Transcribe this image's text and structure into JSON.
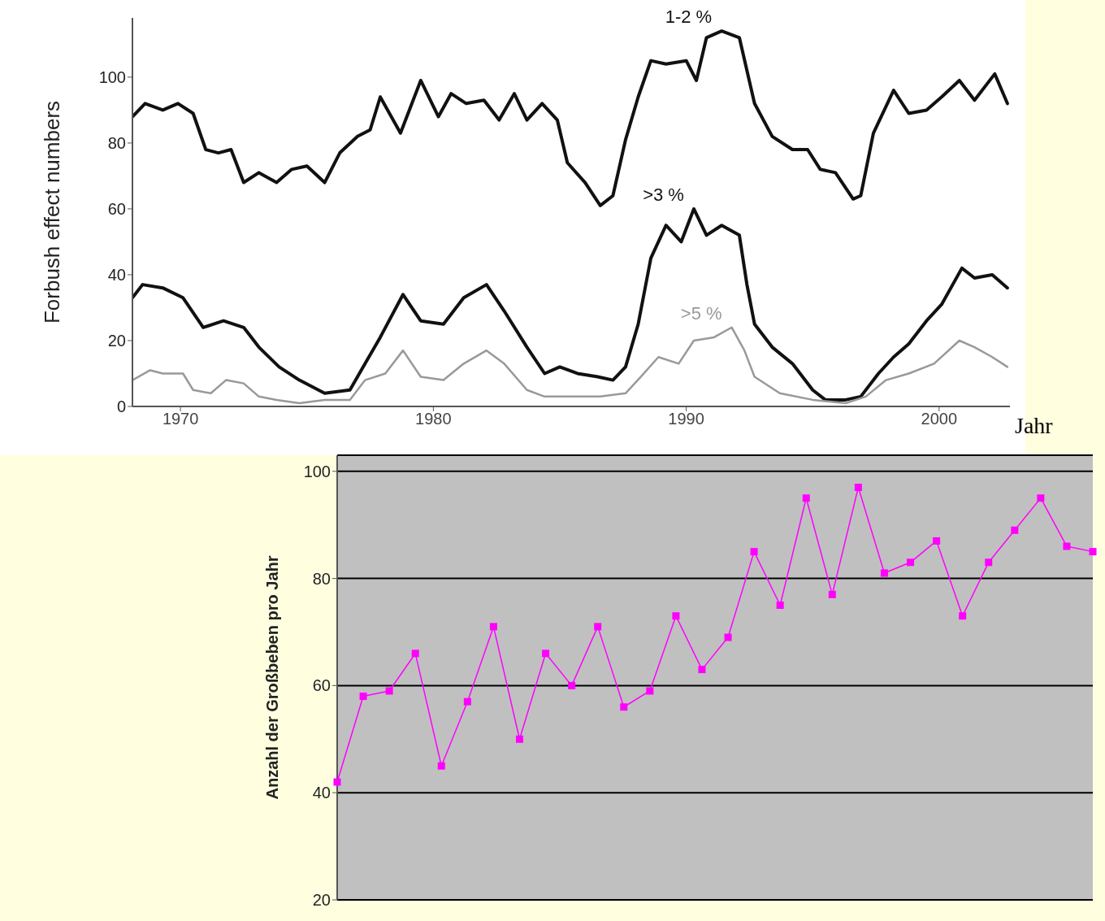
{
  "chart_data": [
    {
      "type": "line",
      "xlabel": "Jahr",
      "ylabel": "Forbush effect numbers",
      "xlim": [
        1968.1,
        2002.8
      ],
      "xticks": [
        1970,
        1980,
        1990,
        2000
      ],
      "ylim": [
        0,
        118
      ],
      "yticks": [
        0,
        20,
        40,
        60,
        80,
        100
      ],
      "grid": false,
      "marker": "none",
      "line_style": "solid",
      "series": [
        {
          "name": "1-2 %",
          "color": "#111111",
          "x": [
            1968.1,
            1968.6,
            1969.3,
            1969.9,
            1970.5,
            1971.0,
            1971.5,
            1972.0,
            1972.5,
            1973.1,
            1973.8,
            1974.4,
            1975.0,
            1975.7,
            1976.3,
            1977.0,
            1977.5,
            1977.9,
            1978.7,
            1979.5,
            1980.2,
            1980.7,
            1981.3,
            1982.0,
            1982.6,
            1983.2,
            1983.7,
            1984.3,
            1984.9,
            1985.3,
            1986.0,
            1986.6,
            1987.1,
            1987.6,
            1988.1,
            1988.6,
            1989.2,
            1990.0,
            1990.4,
            1990.8,
            1991.4,
            1992.1,
            1992.7,
            1993.4,
            1994.2,
            1994.8,
            1995.3,
            1995.9,
            1996.6,
            1996.9,
            1997.4,
            1998.2,
            1998.8,
            1999.5,
            2000.1,
            2000.8,
            2001.4,
            2002.2,
            2002.7
          ],
          "values": [
            88,
            92,
            90,
            92,
            89,
            78,
            77,
            78,
            68,
            71,
            68,
            72,
            73,
            68,
            77,
            82,
            84,
            94,
            83,
            99,
            88,
            95,
            92,
            93,
            87,
            95,
            87,
            92,
            87,
            74,
            68,
            61,
            64,
            81,
            94,
            105,
            104,
            105,
            99,
            112,
            114,
            112,
            92,
            82,
            78,
            78,
            72,
            71,
            63,
            64,
            83,
            96,
            89,
            90,
            94,
            99,
            93,
            101,
            92
          ]
        },
        {
          "name": ">3 %",
          "color": "#111111",
          "x": [
            1968.1,
            1968.5,
            1969.3,
            1970.1,
            1970.9,
            1971.7,
            1972.5,
            1973.1,
            1973.9,
            1974.7,
            1975.7,
            1976.7,
            1977.3,
            1977.9,
            1978.8,
            1979.5,
            1980.4,
            1981.2,
            1982.1,
            1982.8,
            1983.7,
            1984.4,
            1985.0,
            1985.7,
            1986.5,
            1987.1,
            1987.6,
            1988.1,
            1988.6,
            1989.2,
            1989.8,
            1990.3,
            1990.8,
            1991.4,
            1992.1,
            1992.4,
            1992.7,
            1993.4,
            1994.2,
            1995.0,
            1995.5,
            1996.3,
            1996.9,
            1997.6,
            1998.2,
            1998.8,
            1999.5,
            2000.1,
            2000.9,
            2001.4,
            2002.1,
            2002.7
          ],
          "values": [
            33,
            37,
            36,
            33,
            24,
            26,
            24,
            18,
            12,
            8,
            4,
            5,
            13,
            21,
            34,
            26,
            25,
            33,
            37,
            29,
            18,
            10,
            12,
            10,
            9,
            8,
            12,
            25,
            45,
            55,
            50,
            60,
            52,
            55,
            52,
            37,
            25,
            18,
            13,
            5,
            2,
            2,
            3,
            10,
            15,
            19,
            26,
            31,
            42,
            39,
            40,
            36
          ]
        },
        {
          "name": ">5 %",
          "color": "#999999",
          "x": [
            1968.1,
            1968.8,
            1969.3,
            1970.1,
            1970.5,
            1971.2,
            1971.8,
            1972.5,
            1973.1,
            1973.8,
            1974.7,
            1975.7,
            1976.7,
            1977.3,
            1978.1,
            1978.8,
            1979.5,
            1980.4,
            1981.2,
            1982.1,
            1982.8,
            1983.7,
            1984.4,
            1985.3,
            1986.6,
            1987.6,
            1988.2,
            1988.9,
            1989.7,
            1990.3,
            1991.1,
            1991.8,
            1992.3,
            1992.7,
            1993.7,
            1995.0,
            1996.3,
            1997.1,
            1997.9,
            1998.8,
            1999.8,
            2000.8,
            2001.4,
            2002.1,
            2002.7
          ],
          "values": [
            8,
            11,
            10,
            10,
            5,
            4,
            8,
            7,
            3,
            2,
            1,
            2,
            2,
            8,
            10,
            17,
            9,
            8,
            13,
            17,
            13,
            5,
            3,
            3,
            3,
            4,
            9,
            15,
            13,
            20,
            21,
            24,
            17,
            9,
            4,
            2,
            1,
            3,
            8,
            10,
            13,
            20,
            18,
            15,
            12
          ]
        }
      ]
    },
    {
      "type": "line",
      "ylabel": "Anzahl der Großbeben pro Jahr",
      "categories": [
        null,
        null,
        null,
        null,
        null,
        null,
        null,
        null,
        null,
        null,
        null,
        null,
        null,
        null,
        null,
        null,
        null,
        null,
        null,
        null,
        null,
        null,
        null,
        null,
        null,
        null,
        null,
        null,
        null,
        null
      ],
      "ylim": [
        20,
        103
      ],
      "yticks": [
        20,
        40,
        60,
        80,
        100
      ],
      "grid": "y",
      "marker": "square",
      "line_style": "solid",
      "tick_labels": "y",
      "series": [
        {
          "color": "#ff00ff",
          "values": [
            42,
            58,
            59,
            66,
            45,
            57,
            71,
            50,
            66,
            60,
            71,
            56,
            59,
            73,
            63,
            69,
            85,
            75,
            95,
            77,
            97,
            81,
            83,
            87,
            73,
            83,
            89,
            95,
            86,
            85
          ]
        }
      ]
    }
  ]
}
